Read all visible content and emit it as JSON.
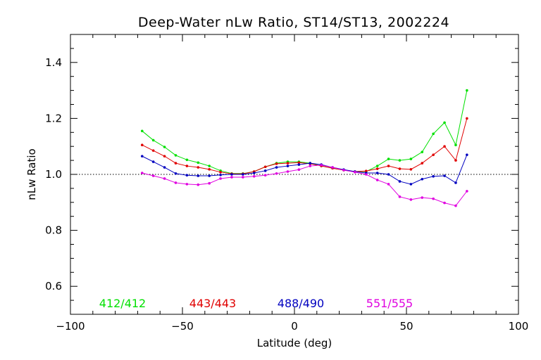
{
  "chart_data": {
    "type": "line",
    "title": "Deep-Water nLw Ratio, ST14/ST13, 2002224",
    "xlabel": "Latitude (deg)",
    "ylabel": "nLw Ratio",
    "xlim": [
      -100,
      100
    ],
    "ylim": [
      0.5,
      1.5
    ],
    "xticks": [
      -100,
      -50,
      0,
      50,
      100
    ],
    "xtick_labels": [
      "−100",
      "−50",
      "0",
      "50",
      "100"
    ],
    "yticks": [
      0.6,
      0.8,
      1.0,
      1.2,
      1.4
    ],
    "ytick_labels": [
      "0.6",
      "0.8",
      "1.0",
      "1.2",
      "1.4"
    ],
    "reference_line": 1.0,
    "grid": false,
    "legend_placement": "bottom",
    "x": [
      -68,
      -63,
      -58,
      -53,
      -48,
      -43,
      -38,
      -33,
      -28,
      -23,
      -18,
      -13,
      -8,
      -3,
      2,
      7,
      12,
      17,
      22,
      27,
      32,
      37,
      42,
      47,
      52,
      57,
      62,
      67,
      72,
      77
    ],
    "series": [
      {
        "name": "412/412",
        "color": "#00e000",
        "values": [
          1.155,
          1.122,
          1.098,
          1.068,
          1.052,
          1.042,
          1.03,
          1.013,
          1.003,
          1.003,
          1.01,
          1.027,
          1.04,
          1.045,
          1.045,
          1.04,
          1.03,
          1.022,
          1.015,
          1.01,
          1.01,
          1.03,
          1.055,
          1.05,
          1.055,
          1.08,
          1.145,
          1.185,
          1.105,
          1.3
        ]
      },
      {
        "name": "443/443",
        "color": "#e00000",
        "values": [
          1.105,
          1.085,
          1.065,
          1.04,
          1.03,
          1.025,
          1.018,
          1.008,
          1.002,
          1.002,
          1.01,
          1.027,
          1.038,
          1.04,
          1.042,
          1.038,
          1.03,
          1.022,
          1.015,
          1.01,
          1.012,
          1.02,
          1.03,
          1.02,
          1.018,
          1.04,
          1.07,
          1.1,
          1.05,
          1.2
        ]
      },
      {
        "name": "488/490",
        "color": "#0000c0",
        "values": [
          1.065,
          1.045,
          1.025,
          1.003,
          0.997,
          0.995,
          0.995,
          0.998,
          1.0,
          1.0,
          1.005,
          1.013,
          1.025,
          1.03,
          1.035,
          1.04,
          1.035,
          1.025,
          1.017,
          1.01,
          1.005,
          1.005,
          1.0,
          0.975,
          0.965,
          0.983,
          0.993,
          0.995,
          0.97,
          1.07
        ]
      },
      {
        "name": "551/555",
        "color": "#e000e0",
        "values": [
          1.005,
          0.995,
          0.985,
          0.97,
          0.965,
          0.963,
          0.968,
          0.985,
          0.99,
          0.99,
          0.993,
          0.997,
          1.003,
          1.01,
          1.017,
          1.03,
          1.033,
          1.025,
          1.015,
          1.008,
          1.0,
          0.98,
          0.965,
          0.92,
          0.91,
          0.917,
          0.913,
          0.898,
          0.888,
          0.94
        ]
      }
    ]
  }
}
